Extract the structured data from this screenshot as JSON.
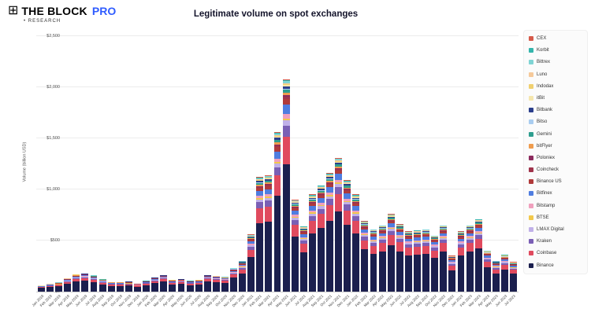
{
  "header": {
    "brand_icon": "⊞",
    "brand_name": "THE BLOCK",
    "brand_suffix": "PRO",
    "brand_sub": "• RESEARCH"
  },
  "chart_data": {
    "type": "bar",
    "variant": "stacked",
    "title": "Legitimate volume on spot exchanges",
    "xlabel": "",
    "ylabel": "Volume (billion USD)",
    "ylim": [
      0,
      2500
    ],
    "yticks": [
      "$0",
      "$500",
      "$1,000",
      "$1,500",
      "$2,000",
      "$2,500"
    ],
    "grid": "horizontal",
    "legend_position": "right",
    "categories": [
      "Jan 2019",
      "Feb 2019",
      "Mar 2019",
      "Apr 2019",
      "May 2019",
      "Jun 2019",
      "Jul 2019",
      "Aug 2019",
      "Sep 2019",
      "Oct 2019",
      "Nov 2019",
      "Dec 2019",
      "Jan 2020",
      "Feb 2020",
      "Mar 2020",
      "Apr 2020",
      "May 2020",
      "Jun 2020",
      "Jul 2020",
      "Aug 2020",
      "Sep 2020",
      "Oct 2020",
      "Nov 2020",
      "Dec 2020",
      "Jan 2021",
      "Feb 2021",
      "Mar 2021",
      "Apr 2021",
      "May 2021",
      "Jun 2021",
      "Jul 2021",
      "Aug 2021",
      "Sep 2021",
      "Oct 2021",
      "Nov 2021",
      "Dec 2021",
      "Jan 2022",
      "Feb 2022",
      "Mar 2022",
      "Apr 2022",
      "May 2022",
      "Jun 2022",
      "Jul 2022",
      "Aug 2022",
      "Sep 2022",
      "Oct 2022",
      "Nov 2022",
      "Dec 2022",
      "Jan 2023",
      "Feb 2023",
      "Mar 2023",
      "Apr 2023",
      "May 2023",
      "Jun 2023",
      "Jul 2023"
    ],
    "totals_billion_usd": [
      60,
      75,
      90,
      130,
      170,
      180,
      160,
      120,
      95,
      95,
      100,
      80,
      105,
      140,
      165,
      115,
      125,
      105,
      115,
      165,
      155,
      145,
      230,
      300,
      560,
      1120,
      1140,
      1560,
      2080,
      900,
      640,
      950,
      1040,
      1160,
      1310,
      1090,
      950,
      690,
      610,
      650,
      760,
      660,
      590,
      600,
      610,
      550,
      650,
      350,
      590,
      650,
      710,
      400,
      300,
      360,
      290
    ],
    "series": [
      {
        "name": "CEX",
        "color": "#d65a4a",
        "share_of_total": 0.005
      },
      {
        "name": "Korbit",
        "color": "#35b5ac",
        "share_of_total": 0.004
      },
      {
        "name": "Bittrex",
        "color": "#7fd4d4",
        "share_of_total": 0.01
      },
      {
        "name": "Luno",
        "color": "#f5c99a",
        "share_of_total": 0.004
      },
      {
        "name": "Indodax",
        "color": "#f0d070",
        "share_of_total": 0.006
      },
      {
        "name": "itBit",
        "color": "#f5e6ad",
        "share_of_total": 0.005
      },
      {
        "name": "Bitbank",
        "color": "#2b3f8c",
        "share_of_total": 0.012
      },
      {
        "name": "Bitso",
        "color": "#a9cdf0",
        "share_of_total": 0.004
      },
      {
        "name": "Gemini",
        "color": "#2f9e8f",
        "share_of_total": 0.015
      },
      {
        "name": "bitFlyer",
        "color": "#ef9c4e",
        "share_of_total": 0.012
      },
      {
        "name": "Poloniex",
        "color": "#8c2b5e",
        "share_of_total": 0.006
      },
      {
        "name": "Coincheck",
        "color": "#a0344c",
        "share_of_total": 0.012
      },
      {
        "name": "Binance US",
        "color": "#b03a3a",
        "share_of_total": 0.025
      },
      {
        "name": "Bitfinex",
        "color": "#4f7de0",
        "share_of_total": 0.045
      },
      {
        "name": "Bitstamp",
        "color": "#f0a0bd",
        "share_of_total": 0.02
      },
      {
        "name": "BTSE",
        "color": "#f2c84b",
        "share_of_total": 0.01
      },
      {
        "name": "LMAX Digital",
        "color": "#c0b0e8",
        "share_of_total": 0.025
      },
      {
        "name": "Kraken",
        "color": "#7a5fb5",
        "share_of_total": 0.05
      },
      {
        "name": "Coinbase",
        "color": "#e04a5e",
        "share_of_total": 0.13
      },
      {
        "name": "Binance",
        "color": "#1b1f4e",
        "share_of_total": 0.6
      }
    ]
  }
}
